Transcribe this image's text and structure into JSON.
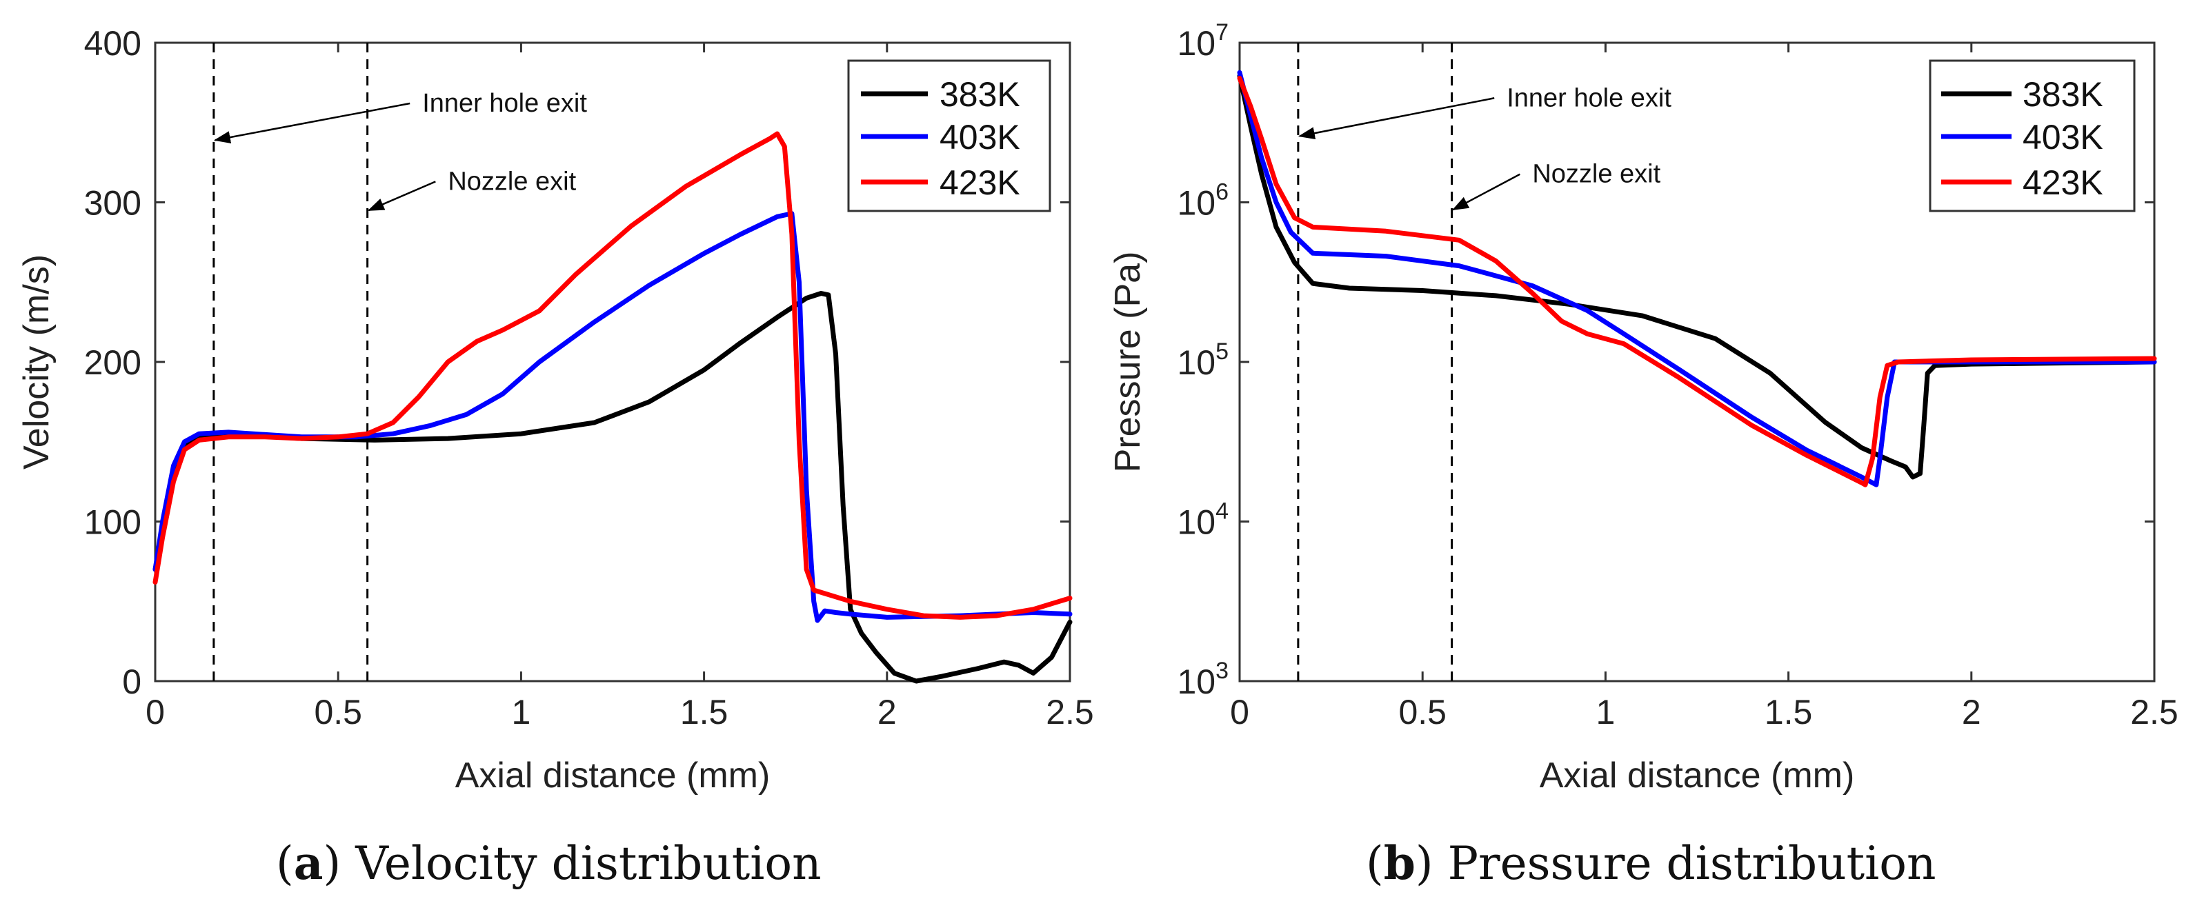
{
  "chart_data": [
    {
      "id": "a",
      "type": "line",
      "caption_letter": "a",
      "caption_text": "Velocity distribution",
      "xlabel": "Axial distance (mm)",
      "ylabel": "Velocity (m/s)",
      "xlim": [
        0,
        2.5
      ],
      "ylim": [
        0,
        400
      ],
      "xscale": "linear",
      "yscale": "linear",
      "x_ticks": [
        0,
        0.5,
        1,
        1.5,
        2,
        2.5
      ],
      "x_tick_labels": [
        "0",
        "0.5",
        "1",
        "1.5",
        "2",
        "2.5"
      ],
      "y_ticks": [
        0,
        100,
        200,
        300,
        400
      ],
      "y_tick_labels": [
        "0",
        "100",
        "200",
        "300",
        "400"
      ],
      "legend_position": "top-right",
      "vlines": [
        {
          "x": 0.16,
          "label": "Inner hole exit",
          "label_at": [
            0.73,
            362
          ],
          "arrow_to": [
            0.16,
            339
          ]
        },
        {
          "x": 0.58,
          "label": "Nozzle exit",
          "label_at": [
            0.8,
            313
          ],
          "arrow_to": [
            0.58,
            295
          ]
        }
      ],
      "series": [
        {
          "name": "383K",
          "color": "#000000",
          "points": [
            [
              0,
              70
            ],
            [
              0.02,
              95
            ],
            [
              0.05,
              130
            ],
            [
              0.08,
              148
            ],
            [
              0.12,
              154
            ],
            [
              0.2,
              155
            ],
            [
              0.4,
              152
            ],
            [
              0.6,
              151
            ],
            [
              0.8,
              152
            ],
            [
              1.0,
              155
            ],
            [
              1.2,
              162
            ],
            [
              1.35,
              175
            ],
            [
              1.5,
              195
            ],
            [
              1.6,
              212
            ],
            [
              1.7,
              228
            ],
            [
              1.78,
              240
            ],
            [
              1.82,
              243
            ],
            [
              1.84,
              242
            ],
            [
              1.86,
              205
            ],
            [
              1.88,
              110
            ],
            [
              1.9,
              45
            ],
            [
              1.93,
              30
            ],
            [
              1.97,
              18
            ],
            [
              2.02,
              5
            ],
            [
              2.08,
              0
            ],
            [
              2.15,
              3
            ],
            [
              2.25,
              8
            ],
            [
              2.32,
              12
            ],
            [
              2.36,
              10
            ],
            [
              2.4,
              5
            ],
            [
              2.45,
              15
            ],
            [
              2.5,
              37
            ]
          ]
        },
        {
          "name": "403K",
          "color": "#0000ff",
          "points": [
            [
              0,
              70
            ],
            [
              0.02,
              100
            ],
            [
              0.05,
              135
            ],
            [
              0.08,
              150
            ],
            [
              0.12,
              155
            ],
            [
              0.2,
              156
            ],
            [
              0.4,
              153
            ],
            [
              0.55,
              153
            ],
            [
              0.65,
              155
            ],
            [
              0.75,
              160
            ],
            [
              0.85,
              167
            ],
            [
              0.95,
              180
            ],
            [
              1.05,
              200
            ],
            [
              1.2,
              225
            ],
            [
              1.35,
              248
            ],
            [
              1.5,
              268
            ],
            [
              1.6,
              280
            ],
            [
              1.7,
              291
            ],
            [
              1.74,
              293
            ],
            [
              1.76,
              250
            ],
            [
              1.78,
              120
            ],
            [
              1.8,
              50
            ],
            [
              1.81,
              38
            ],
            [
              1.83,
              44
            ],
            [
              1.86,
              43
            ],
            [
              1.9,
              42
            ],
            [
              2.0,
              40
            ],
            [
              2.2,
              41
            ],
            [
              2.4,
              43
            ],
            [
              2.5,
              42
            ]
          ]
        },
        {
          "name": "423K",
          "color": "#ff0000",
          "points": [
            [
              0,
              62
            ],
            [
              0.02,
              90
            ],
            [
              0.05,
              125
            ],
            [
              0.08,
              145
            ],
            [
              0.12,
              151
            ],
            [
              0.2,
              153
            ],
            [
              0.3,
              153
            ],
            [
              0.4,
              152
            ],
            [
              0.5,
              153
            ],
            [
              0.58,
              155
            ],
            [
              0.65,
              162
            ],
            [
              0.72,
              178
            ],
            [
              0.8,
              200
            ],
            [
              0.88,
              213
            ],
            [
              0.95,
              220
            ],
            [
              1.05,
              232
            ],
            [
              1.15,
              255
            ],
            [
              1.3,
              285
            ],
            [
              1.45,
              310
            ],
            [
              1.6,
              330
            ],
            [
              1.68,
              340
            ],
            [
              1.7,
              343
            ],
            [
              1.72,
              335
            ],
            [
              1.74,
              280
            ],
            [
              1.76,
              150
            ],
            [
              1.78,
              70
            ],
            [
              1.8,
              57
            ],
            [
              1.9,
              50
            ],
            [
              2.0,
              45
            ],
            [
              2.1,
              41
            ],
            [
              2.2,
              40
            ],
            [
              2.3,
              41
            ],
            [
              2.4,
              45
            ],
            [
              2.5,
              52
            ]
          ]
        }
      ]
    },
    {
      "id": "b",
      "type": "line",
      "caption_letter": "b",
      "caption_text": "Pressure distribution",
      "xlabel": "Axial distance (mm)",
      "ylabel": "Pressure (Pa)",
      "xlim": [
        0,
        2.5
      ],
      "ylim": [
        1000,
        10000000
      ],
      "xscale": "linear",
      "yscale": "log",
      "x_ticks": [
        0,
        0.5,
        1,
        1.5,
        2,
        2.5
      ],
      "x_tick_labels": [
        "0",
        "0.5",
        "1",
        "1.5",
        "2",
        "2.5"
      ],
      "y_ticks": [
        1000,
        10000,
        100000,
        1000000,
        10000000
      ],
      "y_tick_exponents": [
        "3",
        "4",
        "5",
        "6",
        "7"
      ],
      "y_tick_base": "10",
      "legend_position": "top-right",
      "vlines": [
        {
          "x": 0.16,
          "label": "Inner hole exit",
          "label_at": [
            0.73,
            4500000
          ],
          "arrow_to": [
            0.16,
            2600000
          ]
        },
        {
          "x": 0.58,
          "label": "Nozzle exit",
          "label_at": [
            0.8,
            1500000
          ],
          "arrow_to": [
            0.58,
            900000
          ]
        }
      ],
      "series": [
        {
          "name": "383K",
          "color": "#000000",
          "points": [
            [
              0,
              6200000
            ],
            [
              0.03,
              3000000
            ],
            [
              0.06,
              1500000
            ],
            [
              0.1,
              700000
            ],
            [
              0.15,
              420000
            ],
            [
              0.2,
              310000
            ],
            [
              0.3,
              290000
            ],
            [
              0.5,
              280000
            ],
            [
              0.7,
              260000
            ],
            [
              0.9,
              230000
            ],
            [
              1.1,
              195000
            ],
            [
              1.3,
              140000
            ],
            [
              1.45,
              85000
            ],
            [
              1.6,
              42000
            ],
            [
              1.7,
              29000
            ],
            [
              1.78,
              24000
            ],
            [
              1.82,
              22000
            ],
            [
              1.84,
              19000
            ],
            [
              1.86,
              20000
            ],
            [
              1.87,
              40000
            ],
            [
              1.88,
              85000
            ],
            [
              1.9,
              95000
            ],
            [
              2.0,
              97000
            ],
            [
              2.5,
              100000
            ]
          ]
        },
        {
          "name": "403K",
          "color": "#0000ff",
          "points": [
            [
              0,
              6500000
            ],
            [
              0.03,
              3500000
            ],
            [
              0.06,
              1900000
            ],
            [
              0.1,
              1000000
            ],
            [
              0.14,
              650000
            ],
            [
              0.2,
              480000
            ],
            [
              0.4,
              460000
            ],
            [
              0.6,
              400000
            ],
            [
              0.8,
              300000
            ],
            [
              0.95,
              210000
            ],
            [
              1.05,
              150000
            ],
            [
              1.2,
              90000
            ],
            [
              1.4,
              45000
            ],
            [
              1.55,
              28000
            ],
            [
              1.7,
              19000
            ],
            [
              1.74,
              17000
            ],
            [
              1.75,
              25000
            ],
            [
              1.77,
              60000
            ],
            [
              1.79,
              100000
            ],
            [
              1.85,
              100000
            ],
            [
              2.0,
              100000
            ],
            [
              2.5,
              100000
            ]
          ]
        },
        {
          "name": "423K",
          "color": "#ff0000",
          "points": [
            [
              0,
              6000000
            ],
            [
              0.03,
              4000000
            ],
            [
              0.06,
              2500000
            ],
            [
              0.1,
              1300000
            ],
            [
              0.15,
              800000
            ],
            [
              0.2,
              700000
            ],
            [
              0.4,
              660000
            ],
            [
              0.6,
              580000
            ],
            [
              0.7,
              430000
            ],
            [
              0.8,
              270000
            ],
            [
              0.88,
              180000
            ],
            [
              0.95,
              150000
            ],
            [
              1.05,
              130000
            ],
            [
              1.2,
              80000
            ],
            [
              1.4,
              40000
            ],
            [
              1.55,
              26000
            ],
            [
              1.7,
              17500
            ],
            [
              1.71,
              17000
            ],
            [
              1.73,
              25000
            ],
            [
              1.75,
              60000
            ],
            [
              1.77,
              95000
            ],
            [
              1.8,
              100000
            ],
            [
              2.0,
              103000
            ],
            [
              2.5,
              105000
            ]
          ]
        }
      ]
    }
  ]
}
